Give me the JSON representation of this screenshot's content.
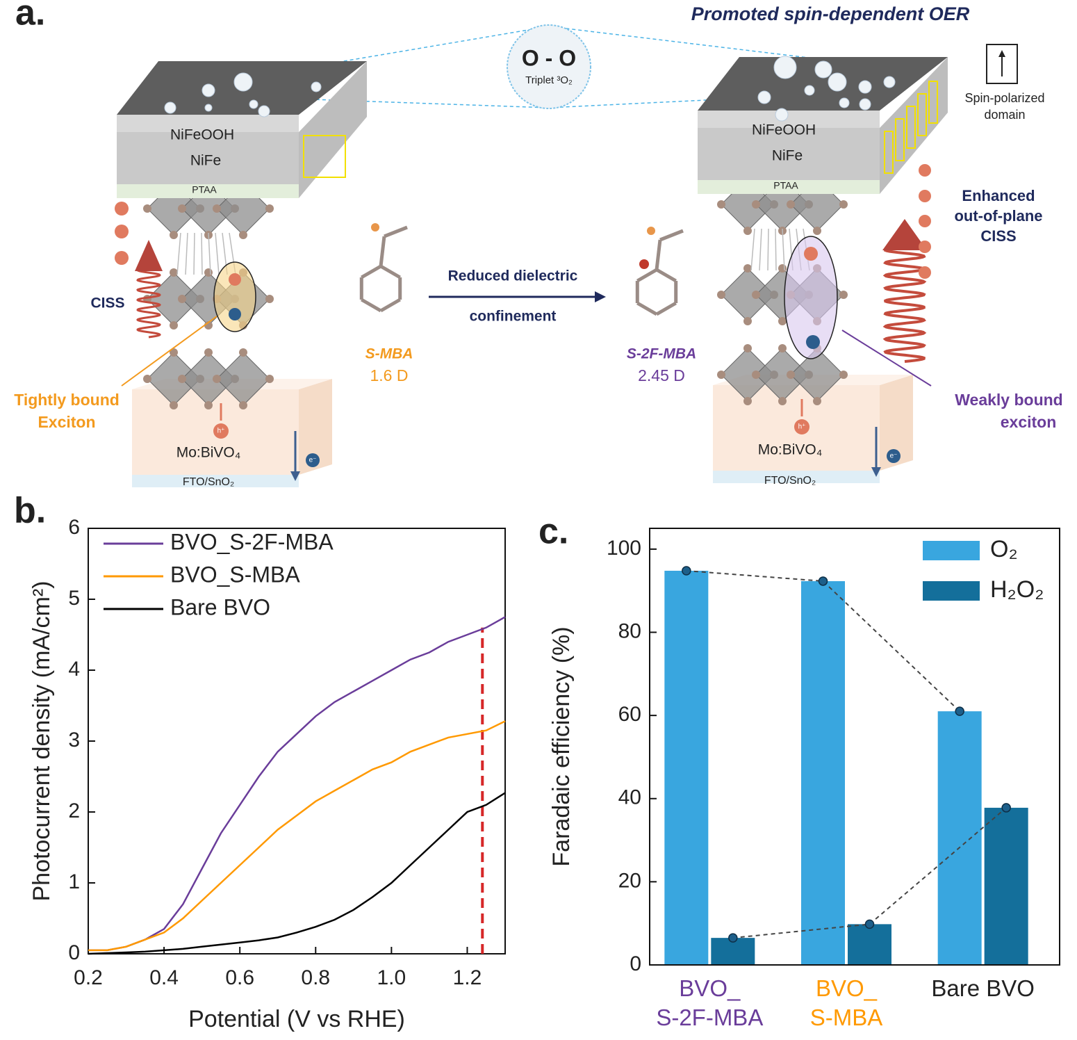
{
  "panel_a": {
    "label": "a.",
    "title": "Promoted spin-dependent OER",
    "bubble_text": "O - O",
    "bubble_caption": "Triplet ³O₂",
    "spin_domain": [
      "Spin-polarized",
      "domain"
    ],
    "left_stack": {
      "top": "NiFeOOH",
      "mid": "NiFe",
      "ptaa": "PTAA",
      "substrate": "Mo:BiVO₄",
      "base": "FTO/SnO₂"
    },
    "right_stack": {
      "top": "NiFeOOH",
      "mid": "NiFe",
      "ptaa": "PTAA",
      "substrate": "Mo:BiVO₄",
      "base": "FTO/SnO₂"
    },
    "ciss_left": "CISS",
    "ciss_right": [
      "Enhanced",
      "out-of-plane",
      "CISS"
    ],
    "arrow_label": [
      "Reduced dielectric",
      "confinement"
    ],
    "molecule_left": {
      "name": "S-MBA",
      "dipole": "1.6 D"
    },
    "molecule_right": {
      "name": "S-2F-MBA",
      "dipole": "2.45 D"
    },
    "exciton_left": [
      "Tightly bound",
      "Exciton"
    ],
    "exciton_right": [
      "Weakly bound",
      "exciton"
    ],
    "hole": "h⁺",
    "electron": "e⁻"
  },
  "chart_data": [
    {
      "type": "line",
      "panel_label": "b.",
      "x_label": "Potential (V vs RHE)",
      "y_label": "Photocurrent density (mA/cm²)",
      "x": [
        0.2,
        0.25,
        0.3,
        0.35,
        0.4,
        0.45,
        0.5,
        0.55,
        0.6,
        0.65,
        0.7,
        0.75,
        0.8,
        0.85,
        0.9,
        0.95,
        1.0,
        1.05,
        1.1,
        1.15,
        1.2,
        1.25,
        1.3
      ],
      "series": [
        {
          "name": "BVO_S-2F-MBA",
          "color": "#6a3d9a",
          "values": [
            0.05,
            0.05,
            0.1,
            0.2,
            0.35,
            0.7,
            1.2,
            1.7,
            2.1,
            2.5,
            2.85,
            3.1,
            3.35,
            3.55,
            3.7,
            3.85,
            4.0,
            4.15,
            4.25,
            4.4,
            4.5,
            4.6,
            4.75
          ]
        },
        {
          "name": "BVO_S-MBA",
          "color": "#ff9900",
          "values": [
            0.05,
            0.05,
            0.1,
            0.2,
            0.3,
            0.5,
            0.75,
            1.0,
            1.25,
            1.5,
            1.75,
            1.95,
            2.15,
            2.3,
            2.45,
            2.6,
            2.7,
            2.85,
            2.95,
            3.05,
            3.1,
            3.15,
            3.28
          ]
        },
        {
          "name": "Bare BVO",
          "color": "#000000",
          "values": [
            0,
            0.01,
            0.02,
            0.03,
            0.05,
            0.07,
            0.1,
            0.13,
            0.16,
            0.19,
            0.23,
            0.3,
            0.38,
            0.48,
            0.62,
            0.8,
            1.0,
            1.25,
            1.5,
            1.75,
            2.0,
            2.1,
            2.27
          ]
        }
      ],
      "reference_line": {
        "x": 1.24,
        "y": [
          0,
          4.6
        ],
        "color": "#d62728"
      },
      "xlim": [
        0.2,
        1.3
      ],
      "xticks": [
        0.2,
        0.4,
        0.6,
        0.8,
        {
          "value": 1,
          "label": "1.0"
        },
        1.2
      ],
      "ylim": [
        0,
        6
      ],
      "yticks": [
        0,
        1,
        2,
        3,
        4,
        5,
        6
      ],
      "legend": "upper left"
    },
    {
      "type": "bar",
      "panel_label": "c.",
      "y_label": "Faradaic efficiency (%)",
      "categories": [
        "BVO_\nS-2F-MBA",
        "BVO_\nS-MBA",
        "Bare BVO"
      ],
      "category_colors": [
        "#6a3d9a",
        "#ff9900",
        "#222222"
      ],
      "series": [
        {
          "name": "O₂",
          "color": "#39a6df",
          "values": [
            94.8,
            92.3,
            61
          ]
        },
        {
          "name": "H₂O₂",
          "color": "#146f9b",
          "values": [
            6.5,
            9.8,
            37.8
          ]
        }
      ],
      "ylim": [
        0,
        105
      ],
      "yticks": [
        0,
        20,
        40,
        60,
        80,
        100
      ],
      "legend": "upper right"
    }
  ]
}
